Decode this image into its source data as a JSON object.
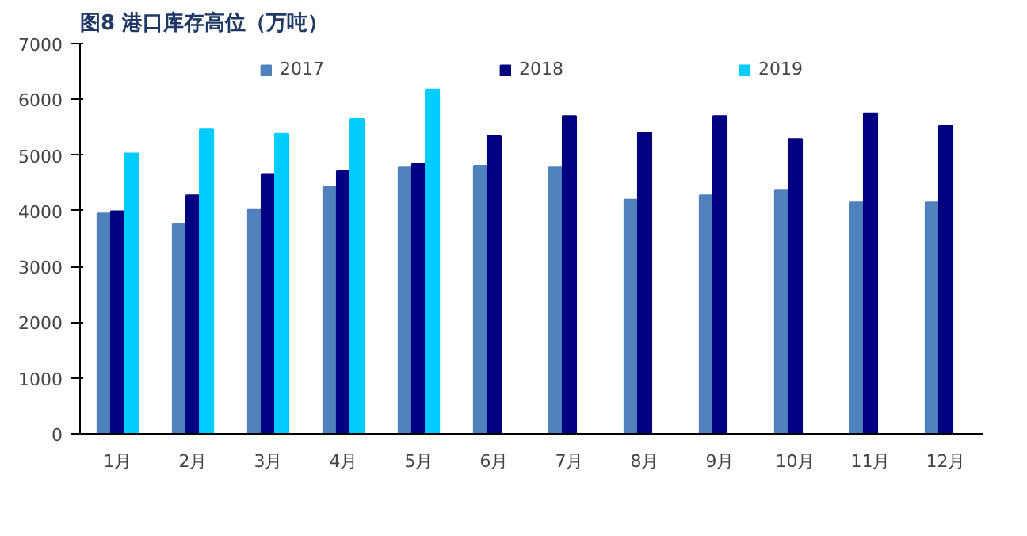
{
  "chart_data": {
    "type": "bar",
    "title": "图8  港口库存高位（万吨）",
    "categories": [
      "1月",
      "2月",
      "3月",
      "4月",
      "5月",
      "6月",
      "7月",
      "8月",
      "9月",
      "10月",
      "11月",
      "12月"
    ],
    "series": [
      {
        "name": "2017",
        "color": "#4f81bd",
        "values": [
          3950,
          3770,
          4030,
          4440,
          4790,
          4810,
          4790,
          4200,
          4280,
          4380,
          4150,
          4150
        ]
      },
      {
        "name": "2018",
        "color": "#000080",
        "values": [
          3990,
          4280,
          4660,
          4710,
          4840,
          5350,
          5700,
          5400,
          5700,
          5290,
          5750,
          5520
        ]
      },
      {
        "name": "2019",
        "color": "#00ccff",
        "values": [
          5030,
          5460,
          5380,
          5650,
          6180,
          null,
          null,
          null,
          null,
          null,
          null,
          null
        ]
      }
    ],
    "ylim": [
      0,
      7000
    ],
    "yticks": [
      0,
      1000,
      2000,
      3000,
      4000,
      5000,
      6000,
      7000
    ],
    "grid": false,
    "legend": "top"
  }
}
